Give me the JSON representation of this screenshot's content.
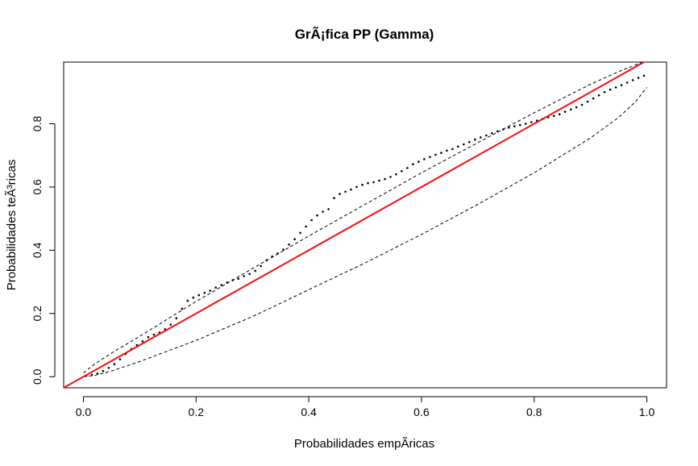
{
  "chart_data": {
    "type": "scatter",
    "title": "GrÃ¡fica PP (Gamma)",
    "xlabel": "Probabilidades empÃ­ricas",
    "ylabel": "Probabilidades teÃ³ricas",
    "xlim": [
      -0.035,
      1.035
    ],
    "ylim": [
      -0.035,
      0.995
    ],
    "xticks": [
      0.0,
      0.2,
      0.4,
      0.6,
      0.8,
      1.0
    ],
    "xtick_labels": [
      "0.0",
      "0.2",
      "0.4",
      "0.6",
      "0.8",
      "1.0"
    ],
    "yticks": [
      0.0,
      0.2,
      0.4,
      0.6,
      0.8
    ],
    "ytick_labels": [
      "0.0",
      "0.2",
      "0.4",
      "0.6",
      "0.8"
    ],
    "grid": false,
    "series": [
      {
        "type": "points",
        "color": "#000000",
        "x": [
          0.005,
          0.015,
          0.025,
          0.035,
          0.045,
          0.055,
          0.065,
          0.075,
          0.085,
          0.095,
          0.105,
          0.115,
          0.125,
          0.135,
          0.145,
          0.155,
          0.165,
          0.175,
          0.185,
          0.195,
          0.205,
          0.215,
          0.225,
          0.235,
          0.245,
          0.255,
          0.265,
          0.275,
          0.285,
          0.295,
          0.305,
          0.315,
          0.325,
          0.335,
          0.345,
          0.355,
          0.365,
          0.375,
          0.385,
          0.395,
          0.405,
          0.415,
          0.425,
          0.435,
          0.445,
          0.455,
          0.465,
          0.475,
          0.485,
          0.495,
          0.505,
          0.515,
          0.525,
          0.535,
          0.545,
          0.555,
          0.565,
          0.575,
          0.585,
          0.595,
          0.605,
          0.615,
          0.625,
          0.635,
          0.645,
          0.655,
          0.665,
          0.675,
          0.685,
          0.695,
          0.705,
          0.715,
          0.725,
          0.735,
          0.745,
          0.755,
          0.765,
          0.775,
          0.785,
          0.795,
          0.805,
          0.815,
          0.825,
          0.835,
          0.845,
          0.855,
          0.865,
          0.875,
          0.885,
          0.895,
          0.905,
          0.915,
          0.925,
          0.935,
          0.945,
          0.955,
          0.965,
          0.975,
          0.985,
          0.995
        ],
        "y": [
          0.003,
          0.006,
          0.01,
          0.018,
          0.028,
          0.04,
          0.055,
          0.072,
          0.088,
          0.1,
          0.112,
          0.125,
          0.133,
          0.14,
          0.15,
          0.165,
          0.185,
          0.215,
          0.24,
          0.25,
          0.258,
          0.265,
          0.272,
          0.282,
          0.29,
          0.298,
          0.305,
          0.31,
          0.318,
          0.325,
          0.335,
          0.35,
          0.368,
          0.38,
          0.39,
          0.402,
          0.418,
          0.435,
          0.455,
          0.475,
          0.495,
          0.51,
          0.522,
          0.53,
          0.565,
          0.578,
          0.585,
          0.592,
          0.6,
          0.607,
          0.612,
          0.615,
          0.62,
          0.625,
          0.632,
          0.64,
          0.65,
          0.66,
          0.672,
          0.68,
          0.688,
          0.695,
          0.702,
          0.708,
          0.715,
          0.72,
          0.728,
          0.735,
          0.742,
          0.75,
          0.757,
          0.763,
          0.77,
          0.776,
          0.782,
          0.788,
          0.792,
          0.796,
          0.8,
          0.805,
          0.81,
          0.815,
          0.82,
          0.825,
          0.83,
          0.838,
          0.845,
          0.852,
          0.86,
          0.87,
          0.88,
          0.89,
          0.9,
          0.908,
          0.915,
          0.922,
          0.93,
          0.938,
          0.945,
          0.952
        ]
      },
      {
        "type": "reference-line",
        "color": "#ee1111",
        "x": [
          -0.035,
          1.035
        ],
        "y": [
          -0.035,
          1.035
        ]
      },
      {
        "type": "upper-band",
        "color": "#000000",
        "style": "dashed",
        "x": [
          0.0,
          0.02,
          0.05,
          0.1,
          0.2,
          0.3,
          0.4,
          0.5,
          0.6,
          0.7,
          0.8,
          0.9,
          0.95,
          1.0
        ],
        "y": [
          0.012,
          0.04,
          0.075,
          0.128,
          0.238,
          0.342,
          0.445,
          0.545,
          0.645,
          0.74,
          0.835,
          0.925,
          0.965,
          1.0
        ]
      },
      {
        "type": "lower-band",
        "color": "#000000",
        "style": "dashed",
        "x": [
          0.0,
          0.02,
          0.05,
          0.1,
          0.2,
          0.3,
          0.4,
          0.5,
          0.6,
          0.7,
          0.8,
          0.9,
          0.95,
          0.98,
          1.0
        ],
        "y": [
          0.0,
          0.004,
          0.018,
          0.048,
          0.115,
          0.19,
          0.275,
          0.36,
          0.45,
          0.545,
          0.645,
          0.755,
          0.82,
          0.87,
          0.915
        ]
      }
    ]
  }
}
